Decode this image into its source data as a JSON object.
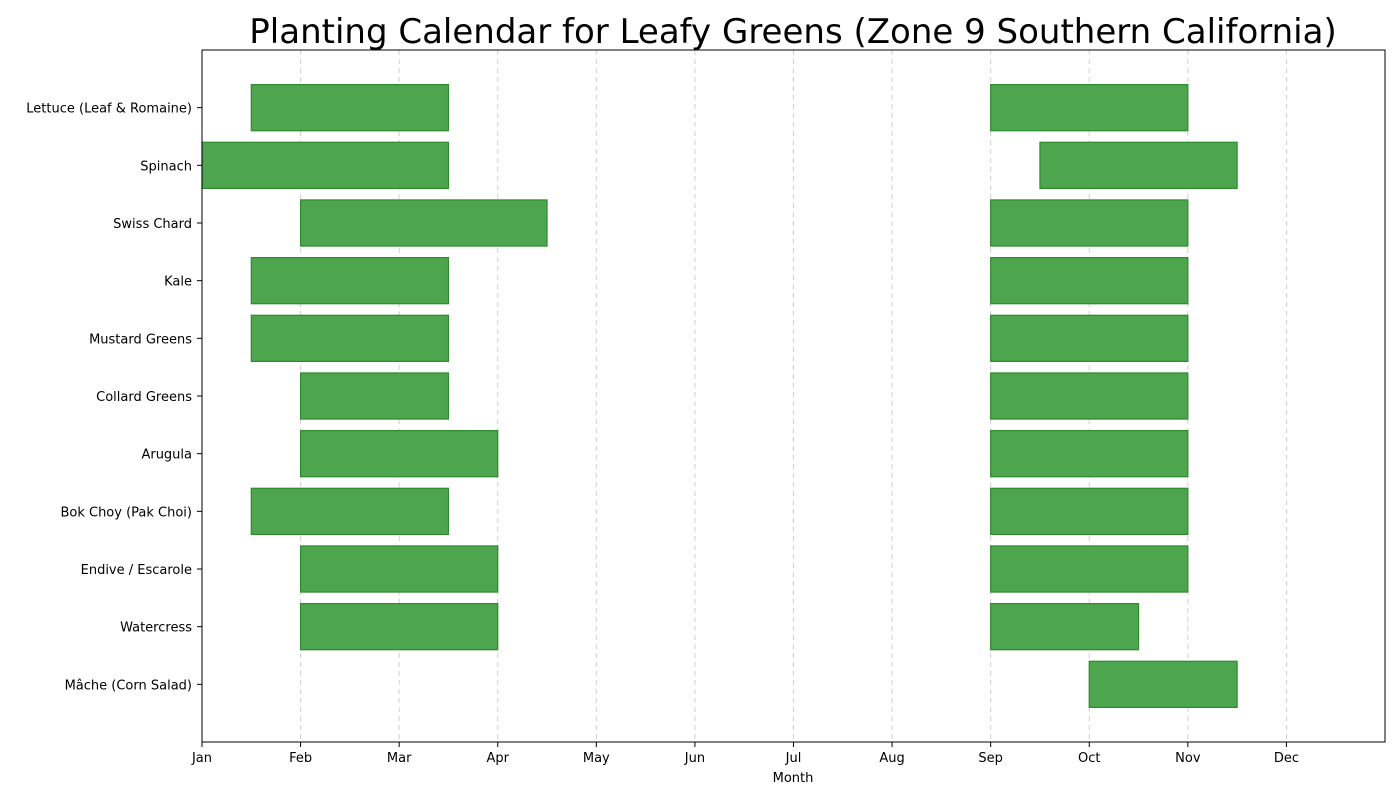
{
  "chart_data": {
    "type": "bar",
    "orientation": "horizontal-gantt",
    "title": "Planting Calendar for Leafy Greens (Zone 9 Southern California)",
    "xlabel": "Month",
    "ylabel": "",
    "xlim": [
      1,
      13
    ],
    "x_ticks": [
      {
        "value": 1,
        "label": "Jan"
      },
      {
        "value": 2,
        "label": "Feb"
      },
      {
        "value": 3,
        "label": "Mar"
      },
      {
        "value": 4,
        "label": "Apr"
      },
      {
        "value": 5,
        "label": "May"
      },
      {
        "value": 6,
        "label": "Jun"
      },
      {
        "value": 7,
        "label": "Jul"
      },
      {
        "value": 8,
        "label": "Aug"
      },
      {
        "value": 9,
        "label": "Sep"
      },
      {
        "value": 10,
        "label": "Oct"
      },
      {
        "value": 11,
        "label": "Nov"
      },
      {
        "value": 12,
        "label": "Dec"
      }
    ],
    "grid": "x, dashed",
    "bar_color": "#4da64d",
    "edge_color": "#2e8b2e",
    "crops": [
      {
        "name": "Lettuce (Leaf & Romaine)",
        "windows": [
          [
            1.5,
            3.5
          ],
          [
            9,
            11
          ]
        ]
      },
      {
        "name": "Spinach",
        "windows": [
          [
            1,
            3.5
          ],
          [
            9.5,
            11.5
          ]
        ]
      },
      {
        "name": "Swiss Chard",
        "windows": [
          [
            2,
            4.5
          ],
          [
            9,
            11
          ]
        ]
      },
      {
        "name": "Kale",
        "windows": [
          [
            1.5,
            3.5
          ],
          [
            9,
            11
          ]
        ]
      },
      {
        "name": "Mustard Greens",
        "windows": [
          [
            1.5,
            3.5
          ],
          [
            9,
            11
          ]
        ]
      },
      {
        "name": "Collard Greens",
        "windows": [
          [
            2,
            3.5
          ],
          [
            9,
            11
          ]
        ]
      },
      {
        "name": "Arugula",
        "windows": [
          [
            2,
            4
          ],
          [
            9,
            11
          ]
        ]
      },
      {
        "name": "Bok Choy (Pak Choi)",
        "windows": [
          [
            1.5,
            3.5
          ],
          [
            9,
            11
          ]
        ]
      },
      {
        "name": "Endive / Escarole",
        "windows": [
          [
            2,
            4
          ],
          [
            9,
            11
          ]
        ]
      },
      {
        "name": "Watercress",
        "windows": [
          [
            2,
            4
          ],
          [
            9,
            10.5
          ]
        ]
      },
      {
        "name": "Mâche (Corn Salad)",
        "windows": [
          [
            10,
            11.5
          ]
        ]
      }
    ]
  }
}
